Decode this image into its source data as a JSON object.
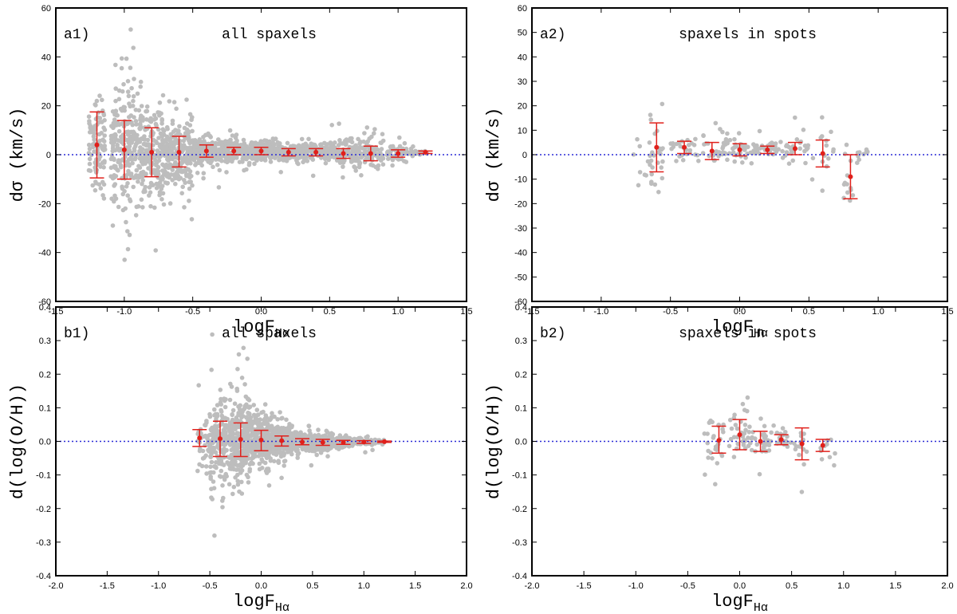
{
  "chart_data": [
    {
      "id": "a1",
      "type": "scatter",
      "panel_label": "a1)",
      "title": "all spaxels",
      "xlabel": "logF",
      "xlabel_sub": "Hα",
      "ylabel": "dσ (km/s)",
      "xlim": [
        -1.5,
        1.5
      ],
      "ylim": [
        -60,
        60
      ],
      "xticks": [
        -1.5,
        -1.0,
        -0.5,
        0.0,
        0.5,
        1.0,
        1.5
      ],
      "xtick_labels": [
        "-1.5",
        "-1.0",
        "-0.5",
        "0.0",
        "0.5",
        "1.0",
        "1.5"
      ],
      "yticks": [
        -60,
        -40,
        -20,
        0,
        20,
        40,
        60
      ],
      "ytick_labels": [
        "-60",
        "-40",
        "-20",
        "0",
        "20",
        "40",
        "60"
      ],
      "reference_line_y": 0,
      "colors": {
        "points": "#bdbdbd",
        "errorbars": "#e0201b",
        "reference": "#2b2bd6"
      },
      "binned": [
        {
          "x": -1.2,
          "y": 4,
          "lo": -9.5,
          "hi": 17.5
        },
        {
          "x": -1.0,
          "y": 2,
          "lo": -10,
          "hi": 14
        },
        {
          "x": -0.8,
          "y": 1,
          "lo": -9,
          "hi": 11
        },
        {
          "x": -0.6,
          "y": 1,
          "lo": -5,
          "hi": 7.5
        },
        {
          "x": -0.4,
          "y": 1.5,
          "lo": -1,
          "hi": 4
        },
        {
          "x": -0.2,
          "y": 1.5,
          "lo": 0,
          "hi": 3
        },
        {
          "x": 0.0,
          "y": 1.5,
          "lo": 0,
          "hi": 3
        },
        {
          "x": 0.2,
          "y": 1,
          "lo": -0.5,
          "hi": 2.5
        },
        {
          "x": 0.4,
          "y": 1,
          "lo": -0.5,
          "hi": 2.5
        },
        {
          "x": 0.6,
          "y": 0.5,
          "lo": -1.5,
          "hi": 2.5
        },
        {
          "x": 0.8,
          "y": 0.5,
          "lo": -2.5,
          "hi": 3.5
        },
        {
          "x": 1.0,
          "y": 0.5,
          "lo": -1,
          "hi": 2
        },
        {
          "x": 1.2,
          "y": 1,
          "lo": 0.5,
          "hi": 1.5
        }
      ],
      "scatter_spread": [
        {
          "x": -1.2,
          "n": 100,
          "center": 3,
          "sigma": 9,
          "spread": 0.06
        },
        {
          "x": -1.0,
          "n": 220,
          "center": 2,
          "sigma": 12,
          "spread": 0.1
        },
        {
          "x": -0.8,
          "n": 220,
          "center": 1,
          "sigma": 10,
          "spread": 0.1
        },
        {
          "x": -0.6,
          "n": 200,
          "center": 1,
          "sigma": 7,
          "spread": 0.1
        },
        {
          "x": -0.4,
          "n": 180,
          "center": 1.5,
          "sigma": 3,
          "spread": 0.1
        },
        {
          "x": -0.2,
          "n": 180,
          "center": 1.5,
          "sigma": 2,
          "spread": 0.1
        },
        {
          "x": 0.0,
          "n": 180,
          "center": 1.5,
          "sigma": 1.8,
          "spread": 0.1
        },
        {
          "x": 0.2,
          "n": 160,
          "center": 1,
          "sigma": 1.6,
          "spread": 0.1
        },
        {
          "x": 0.4,
          "n": 140,
          "center": 1,
          "sigma": 1.6,
          "spread": 0.1
        },
        {
          "x": 0.6,
          "n": 110,
          "center": 0.5,
          "sigma": 2.5,
          "spread": 0.1
        },
        {
          "x": 0.8,
          "n": 90,
          "center": 0.5,
          "sigma": 3.5,
          "spread": 0.1
        },
        {
          "x": 1.0,
          "n": 60,
          "center": 0.5,
          "sigma": 1.5,
          "spread": 0.08
        },
        {
          "x": 1.15,
          "n": 30,
          "center": 1,
          "sigma": 0.6,
          "spread": 0.06
        }
      ]
    },
    {
      "id": "a2",
      "type": "scatter",
      "panel_label": "a2)",
      "title": "spaxels in spots",
      "xlabel": "logF",
      "xlabel_sub": "Hα",
      "ylabel": "dσ (km/s)",
      "xlim": [
        -1.5,
        1.5
      ],
      "ylim": [
        -60,
        60
      ],
      "xticks": [
        -1.5,
        -1.0,
        -0.5,
        0.0,
        0.5,
        1.0,
        1.5
      ],
      "xtick_labels": [
        "-1.5",
        "-1.0",
        "-0.5",
        "0.0",
        "0.5",
        "1.0",
        "1.5"
      ],
      "yticks": [
        -60,
        -50,
        -40,
        -30,
        -20,
        -10,
        0,
        10,
        20,
        30,
        40,
        50,
        60
      ],
      "ytick_labels": [
        "-60",
        "-50",
        "-40",
        "-30",
        "-20",
        "-10",
        "0",
        "10",
        "20",
        "30",
        "40",
        "50",
        "60"
      ],
      "reference_line_y": 0,
      "colors": {
        "points": "#bdbdbd",
        "errorbars": "#e0201b",
        "reference": "#2b2bd6"
      },
      "binned": [
        {
          "x": -0.6,
          "y": 3,
          "lo": -7,
          "hi": 13
        },
        {
          "x": -0.4,
          "y": 3,
          "lo": 0.5,
          "hi": 5.5
        },
        {
          "x": -0.2,
          "y": 1.5,
          "lo": -2,
          "hi": 5
        },
        {
          "x": 0.0,
          "y": 2,
          "lo": -0.5,
          "hi": 4.5
        },
        {
          "x": 0.2,
          "y": 2,
          "lo": 0.5,
          "hi": 3.5
        },
        {
          "x": 0.4,
          "y": 2.5,
          "lo": 0,
          "hi": 5
        },
        {
          "x": 0.6,
          "y": 0.5,
          "lo": -5,
          "hi": 6
        },
        {
          "x": 0.8,
          "y": -9,
          "lo": -18,
          "hi": 0
        }
      ],
      "scatter_spread": [
        {
          "x": -0.7,
          "n": 14,
          "center": -4,
          "sigma": 6,
          "spread": 0.08
        },
        {
          "x": -0.6,
          "n": 20,
          "center": 3,
          "sigma": 8,
          "spread": 0.05
        },
        {
          "x": -0.4,
          "n": 25,
          "center": 3,
          "sigma": 2.5,
          "spread": 0.1
        },
        {
          "x": -0.2,
          "n": 30,
          "center": 2,
          "sigma": 2.5,
          "spread": 0.1
        },
        {
          "x": 0.0,
          "n": 35,
          "center": 3,
          "sigma": 3,
          "spread": 0.1
        },
        {
          "x": 0.2,
          "n": 30,
          "center": 2,
          "sigma": 1.8,
          "spread": 0.1
        },
        {
          "x": 0.4,
          "n": 30,
          "center": 3,
          "sigma": 2.5,
          "spread": 0.1
        },
        {
          "x": 0.6,
          "n": 15,
          "center": 0,
          "sigma": 6,
          "spread": 0.08
        },
        {
          "x": 0.8,
          "n": 14,
          "center": -10,
          "sigma": 8,
          "spread": 0.05
        },
        {
          "x": 0.9,
          "n": 8,
          "center": 1,
          "sigma": 1.5,
          "spread": 0.05
        }
      ]
    },
    {
      "id": "b1",
      "type": "scatter",
      "panel_label": "b1)",
      "title": "all spaxels",
      "xlabel": "logF",
      "xlabel_sub": "Hα",
      "ylabel": "d(log(O/H))",
      "xlim": [
        -2.0,
        2.0
      ],
      "ylim": [
        -0.4,
        0.4
      ],
      "xticks": [
        -2.0,
        -1.5,
        -1.0,
        -0.5,
        0.0,
        0.5,
        1.0,
        1.5,
        2.0
      ],
      "xtick_labels": [
        "-2.0",
        "-1.5",
        "-1.0",
        "-0.5",
        "0.0",
        "0.5",
        "1.0",
        "1.5",
        "2.0"
      ],
      "yticks": [
        -0.4,
        -0.3,
        -0.2,
        -0.1,
        0.0,
        0.1,
        0.2,
        0.3,
        0.4
      ],
      "ytick_labels": [
        "-0.4",
        "-0.3",
        "-0.2",
        "-0.1",
        "0.0",
        "0.1",
        "0.2",
        "0.3",
        "0.4"
      ],
      "reference_line_y": 0,
      "colors": {
        "points": "#bdbdbd",
        "errorbars": "#e0201b",
        "reference": "#2b2bd6"
      },
      "binned": [
        {
          "x": -0.6,
          "y": 0.01,
          "lo": -0.015,
          "hi": 0.035
        },
        {
          "x": -0.4,
          "y": 0.008,
          "lo": -0.045,
          "hi": 0.06
        },
        {
          "x": -0.2,
          "y": 0.006,
          "lo": -0.045,
          "hi": 0.055
        },
        {
          "x": 0.0,
          "y": 0.004,
          "lo": -0.028,
          "hi": 0.033
        },
        {
          "x": 0.2,
          "y": 0.002,
          "lo": -0.014,
          "hi": 0.016
        },
        {
          "x": 0.4,
          "y": -0.002,
          "lo": -0.01,
          "hi": 0.008
        },
        {
          "x": 0.6,
          "y": -0.003,
          "lo": -0.012,
          "hi": 0.006
        },
        {
          "x": 0.8,
          "y": -0.003,
          "lo": -0.009,
          "hi": 0.003
        },
        {
          "x": 1.0,
          "y": -0.002,
          "lo": -0.006,
          "hi": 0.002
        },
        {
          "x": 1.2,
          "y": -0.001,
          "lo": -0.003,
          "hi": 0.001
        }
      ],
      "scatter_spread": [
        {
          "x": -0.55,
          "n": 40,
          "center": 0.0,
          "sigma": 0.04,
          "spread": 0.07
        },
        {
          "x": -0.4,
          "n": 180,
          "center": 0.005,
          "sigma": 0.06,
          "spread": 0.1
        },
        {
          "x": -0.2,
          "n": 250,
          "center": 0.005,
          "sigma": 0.06,
          "spread": 0.1
        },
        {
          "x": 0.0,
          "n": 250,
          "center": 0.004,
          "sigma": 0.035,
          "spread": 0.1
        },
        {
          "x": 0.2,
          "n": 200,
          "center": 0.002,
          "sigma": 0.022,
          "spread": 0.1
        },
        {
          "x": 0.4,
          "n": 160,
          "center": -0.002,
          "sigma": 0.014,
          "spread": 0.1
        },
        {
          "x": 0.6,
          "n": 120,
          "center": -0.003,
          "sigma": 0.012,
          "spread": 0.1
        },
        {
          "x": 0.8,
          "n": 80,
          "center": -0.003,
          "sigma": 0.008,
          "spread": 0.1
        },
        {
          "x": 1.0,
          "n": 50,
          "center": -0.002,
          "sigma": 0.005,
          "spread": 0.1
        },
        {
          "x": 1.15,
          "n": 25,
          "center": -0.001,
          "sigma": 0.003,
          "spread": 0.05
        }
      ]
    },
    {
      "id": "b2",
      "type": "scatter",
      "panel_label": "b2)",
      "title": "spaxels in spots",
      "xlabel": "logF",
      "xlabel_sub": "Hα",
      "ylabel": "d(log(O/H))",
      "xlim": [
        -2.0,
        2.0
      ],
      "ylim": [
        -0.4,
        0.4
      ],
      "xticks": [
        -2.0,
        -1.5,
        -1.0,
        -0.5,
        0.0,
        0.5,
        1.0,
        1.5,
        2.0
      ],
      "xtick_labels": [
        "-2.0",
        "-1.5",
        "-1.0",
        "-0.5",
        "0.0",
        "0.5",
        "1.0",
        "1.5",
        "2.0"
      ],
      "yticks": [
        -0.4,
        -0.3,
        -0.2,
        -0.1,
        0.0,
        0.1,
        0.2,
        0.3,
        0.4
      ],
      "ytick_labels": [
        "-0.4",
        "-0.3",
        "-0.2",
        "-0.1",
        "0.0",
        "0.1",
        "0.2",
        "0.3",
        "0.4"
      ],
      "reference_line_y": 0,
      "colors": {
        "points": "#bdbdbd",
        "errorbars": "#e0201b",
        "reference": "#2b2bd6"
      },
      "binned": [
        {
          "x": -0.2,
          "y": 0.003,
          "lo": -0.035,
          "hi": 0.045
        },
        {
          "x": 0.0,
          "y": 0.02,
          "lo": -0.025,
          "hi": 0.065
        },
        {
          "x": 0.2,
          "y": 0.0,
          "lo": -0.03,
          "hi": 0.03
        },
        {
          "x": 0.4,
          "y": 0.005,
          "lo": -0.01,
          "hi": 0.02
        },
        {
          "x": 0.6,
          "y": -0.007,
          "lo": -0.055,
          "hi": 0.04
        },
        {
          "x": 0.8,
          "y": -0.012,
          "lo": -0.03,
          "hi": 0.006
        }
      ],
      "scatter_spread": [
        {
          "x": -0.25,
          "n": 30,
          "center": 0.0,
          "sigma": 0.04,
          "spread": 0.1
        },
        {
          "x": 0.0,
          "n": 35,
          "center": 0.02,
          "sigma": 0.035,
          "spread": 0.1
        },
        {
          "x": 0.2,
          "n": 30,
          "center": 0.0,
          "sigma": 0.025,
          "spread": 0.1
        },
        {
          "x": 0.4,
          "n": 25,
          "center": 0.005,
          "sigma": 0.015,
          "spread": 0.1
        },
        {
          "x": 0.6,
          "n": 15,
          "center": -0.01,
          "sigma": 0.035,
          "spread": 0.08
        },
        {
          "x": 0.85,
          "n": 10,
          "center": -0.01,
          "sigma": 0.02,
          "spread": 0.07
        }
      ]
    }
  ]
}
